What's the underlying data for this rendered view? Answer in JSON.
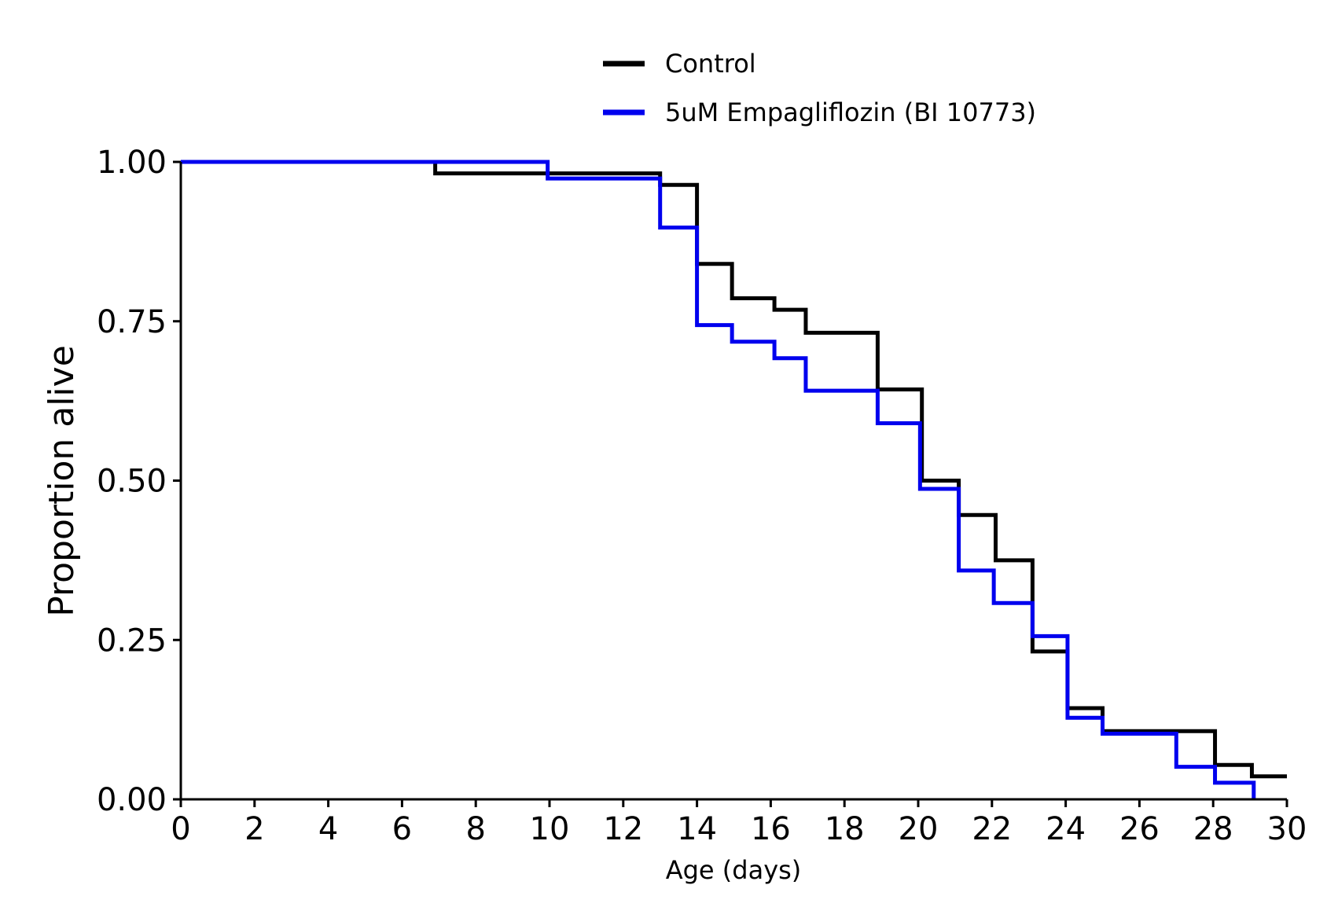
{
  "chart_data": {
    "type": "line",
    "style": "step-post",
    "title": "",
    "xlabel": "Age (days)",
    "ylabel": "Proportion alive",
    "xlim": [
      0,
      30
    ],
    "ylim": [
      0,
      1
    ],
    "grid": false,
    "legend_position": "top-center",
    "x_ticks": [
      0,
      2,
      4,
      6,
      8,
      10,
      12,
      14,
      16,
      18,
      20,
      22,
      24,
      26,
      28,
      30
    ],
    "x_tick_labels": [
      "0",
      "2",
      "4",
      "6",
      "8",
      "10",
      "12",
      "14",
      "16",
      "18",
      "20",
      "22",
      "24",
      "26",
      "28",
      "30"
    ],
    "y_ticks": [
      0,
      0.25,
      0.5,
      0.75,
      1.0
    ],
    "y_tick_labels": [
      "0.00",
      "0.25",
      "0.50",
      "0.75",
      "1.00"
    ],
    "series": [
      {
        "name": "Control",
        "color": "#000000",
        "points": [
          [
            0,
            1.0
          ],
          [
            6.9,
            0.982
          ],
          [
            13.0,
            0.964
          ],
          [
            14.0,
            0.84
          ],
          [
            14.95,
            0.786
          ],
          [
            16.1,
            0.768
          ],
          [
            16.95,
            0.732
          ],
          [
            18.9,
            0.643
          ],
          [
            20.1,
            0.5
          ],
          [
            21.1,
            0.446
          ],
          [
            22.1,
            0.375
          ],
          [
            23.1,
            0.232
          ],
          [
            24.05,
            0.143
          ],
          [
            25.0,
            0.107
          ],
          [
            28.05,
            0.054
          ],
          [
            29.05,
            0.036
          ],
          [
            30.0,
            0.036
          ]
        ]
      },
      {
        "name": "5uM Empagliflozin (BI 10773)",
        "color": "#0000ee",
        "points": [
          [
            0,
            1.0
          ],
          [
            9.95,
            0.974
          ],
          [
            13.0,
            0.897
          ],
          [
            14.0,
            0.744
          ],
          [
            14.95,
            0.718
          ],
          [
            16.1,
            0.692
          ],
          [
            16.95,
            0.641
          ],
          [
            18.9,
            0.59
          ],
          [
            20.05,
            0.487
          ],
          [
            21.1,
            0.359
          ],
          [
            22.05,
            0.308
          ],
          [
            23.1,
            0.256
          ],
          [
            24.05,
            0.128
          ],
          [
            25.0,
            0.103
          ],
          [
            27.0,
            0.051
          ],
          [
            28.05,
            0.026
          ],
          [
            29.1,
            0.0
          ]
        ]
      }
    ]
  }
}
